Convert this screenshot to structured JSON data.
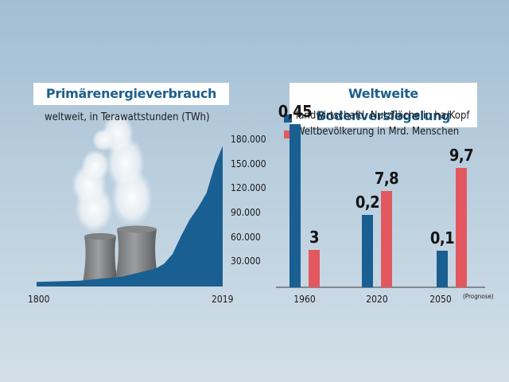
{
  "colors": {
    "energy_fill": "#1a5f91",
    "series_blue": "#1a5f91",
    "series_red": "#e3585f",
    "title_text": "#1d5f8e"
  },
  "icons": [
    "cooling-tower-illustration",
    "steam-cloud-illustration"
  ],
  "chart_data": [
    {
      "type": "area",
      "title": "Primärenergieverbrauch",
      "subtitle": "weltweit, in Terawattstunden (TWh)",
      "x_start_label": "1800",
      "x_end_label": "2019",
      "ylim": [
        0,
        180000
      ],
      "yticks": [
        "30.000",
        "60.000",
        "90.000",
        "120.000",
        "150.000",
        "180.000"
      ],
      "ytick_values": [
        30000,
        60000,
        90000,
        120000,
        150000,
        180000
      ],
      "x": [
        1800,
        1850,
        1900,
        1920,
        1940,
        1950,
        1960,
        1970,
        1980,
        1990,
        2000,
        2010,
        2019
      ],
      "values": [
        5600,
        7000,
        12000,
        17000,
        22000,
        28000,
        40000,
        62000,
        82000,
        97000,
        115000,
        150000,
        173000
      ]
    },
    {
      "type": "bar",
      "title": "Weltweite Bodenversiegelung",
      "categories": [
        "1960",
        "2020",
        "2050"
      ],
      "category_note": "(Prognose)",
      "series": [
        {
          "name": "landwirtschaftl. Nutzfläche in ha/Kopf",
          "values": [
            0.45,
            0.2,
            0.1
          ],
          "labels": [
            "0,45",
            "0,2",
            "0,1"
          ]
        },
        {
          "name": "Weltbevölkerung in Mrd. Menschen",
          "values": [
            3,
            7.8,
            9.7
          ],
          "labels": [
            "3",
            "7,8",
            "9,7"
          ]
        }
      ],
      "legend": "top"
    }
  ]
}
